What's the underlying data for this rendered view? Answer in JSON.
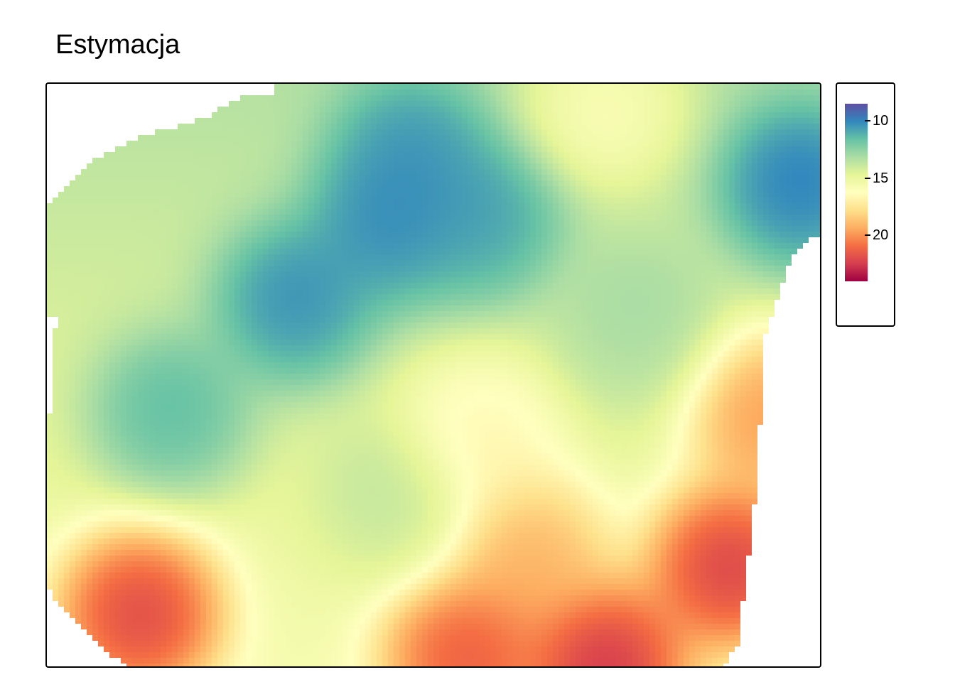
{
  "title": "Estymacja",
  "legend": {
    "min": 8.5,
    "max": 24,
    "ticks": [
      {
        "value": 10,
        "label": "10"
      },
      {
        "value": 15,
        "label": "15"
      },
      {
        "value": 20,
        "label": "20"
      }
    ],
    "palette": [
      "#5E4FA2",
      "#3288BD",
      "#66C2A5",
      "#ABDDA4",
      "#E6F598",
      "#FFFFBF",
      "#FEE08B",
      "#FDAE61",
      "#F46D43",
      "#D53E4F",
      "#9E0142"
    ]
  },
  "chart_data": {
    "type": "heatmap",
    "title": "Estymacja",
    "value_range": [
      8.5,
      24
    ],
    "colorbar_ticks": [
      10,
      15,
      20
    ],
    "colormap": "Spectral (reversed)",
    "features": {
      "low_centers": [
        {
          "x": 0.32,
          "y": 0.38,
          "value": 9.5
        },
        {
          "x": 0.16,
          "y": 0.57,
          "value": 10.5
        },
        {
          "x": 0.47,
          "y": 0.13,
          "value": 10.5
        },
        {
          "x": 0.44,
          "y": 0.25,
          "value": 9.8
        },
        {
          "x": 0.56,
          "y": 0.24,
          "value": 10.5
        },
        {
          "x": 0.97,
          "y": 0.18,
          "value": 9.5
        },
        {
          "x": 0.45,
          "y": 0.72,
          "value": 13.0
        },
        {
          "x": 0.76,
          "y": 0.42,
          "value": 13.0
        }
      ],
      "high_centers": [
        {
          "x": 0.12,
          "y": 0.9,
          "value": 23.0
        },
        {
          "x": 0.88,
          "y": 0.82,
          "value": 23.5
        },
        {
          "x": 0.54,
          "y": 0.97,
          "value": 22.0
        },
        {
          "x": 0.72,
          "y": 0.99,
          "value": 23.5
        },
        {
          "x": 0.93,
          "y": 0.56,
          "value": 21.0
        },
        {
          "x": 0.72,
          "y": 0.03,
          "value": 17.5
        },
        {
          "x": 0.56,
          "y": 0.6,
          "value": 17.0
        },
        {
          "x": 0.62,
          "y": 0.8,
          "value": 19.5
        }
      ],
      "background_value": 14.5
    }
  }
}
